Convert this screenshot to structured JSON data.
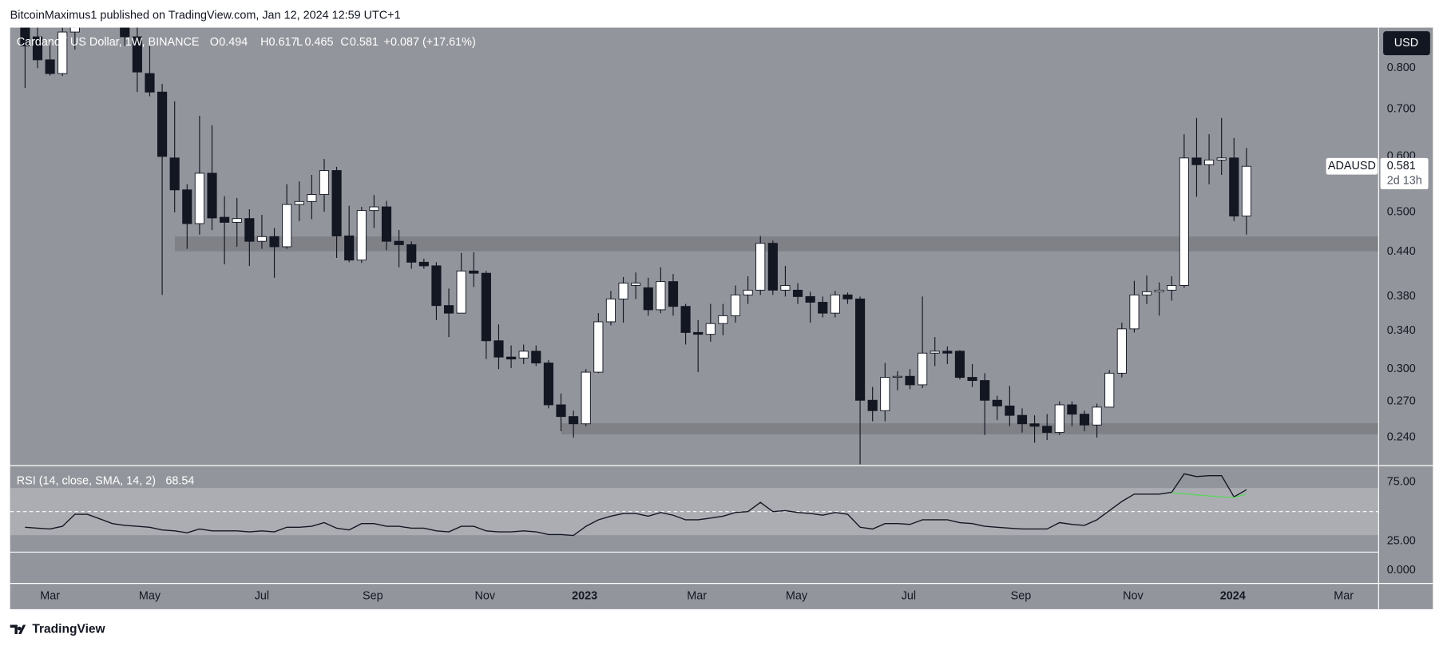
{
  "header": {
    "published": "BitcoinMaximus1 published on TradingView.com, Jan 12, 2024 12:59 UTC+1"
  },
  "footer": {
    "brand": "TradingView"
  },
  "chart_data": [
    {
      "type": "candlestick",
      "title": "Cardano / US Dollar, 1W, BINANCE",
      "ohlc_labels": [
        "O",
        "H",
        "L",
        "C"
      ],
      "change": "+0.087 (+17.61%)",
      "symbol": "ADAUSD",
      "countdown": "2d 13h",
      "currency": "USD",
      "log": true,
      "grid": false,
      "up_color": "#ffffff",
      "down_color": "#131722",
      "x": [
        0,
        1,
        2,
        3,
        4,
        5,
        6,
        7,
        8,
        9,
        10,
        11,
        12,
        13,
        14,
        15,
        16,
        17,
        18,
        19,
        20,
        21,
        22,
        23,
        24,
        25,
        26,
        27,
        28,
        29,
        30,
        31,
        32,
        33,
        34,
        35,
        36,
        37,
        38,
        39,
        40,
        41,
        42,
        43,
        44,
        45,
        46,
        47,
        48,
        49,
        50,
        51,
        52,
        53,
        54,
        55,
        56,
        57,
        58,
        59,
        60,
        61,
        62,
        63,
        64,
        65,
        66,
        67,
        68,
        69,
        70,
        71,
        72,
        73,
        74,
        75,
        76,
        77,
        78,
        79,
        80,
        81,
        82,
        83,
        84,
        85,
        86,
        87,
        88,
        89,
        90,
        91,
        92,
        93,
        94,
        95,
        96,
        97,
        98
      ],
      "open": [
        0.94,
        0.886,
        0.822,
        0.786,
        0.9,
        0.95,
        1.12,
        1.15,
        0.97,
        0.886,
        0.786,
        0.74,
        0.597,
        0.538,
        0.482,
        0.568,
        0.492,
        0.484,
        0.49,
        0.455,
        0.462,
        0.447,
        0.513,
        0.518,
        0.53,
        0.573,
        0.463,
        0.428,
        0.503,
        0.509,
        0.455,
        0.45,
        0.425,
        0.42,
        0.369,
        0.36,
        0.413,
        0.41,
        0.329,
        0.312,
        0.311,
        0.318,
        0.306,
        0.267,
        0.257,
        0.251,
        0.297,
        0.35,
        0.377,
        0.394,
        0.391,
        0.364,
        0.399,
        0.368,
        0.338,
        0.336,
        0.348,
        0.357,
        0.382,
        0.388,
        0.452,
        0.388,
        0.388,
        0.38,
        0.373,
        0.36,
        0.382,
        0.377,
        0.271,
        0.262,
        0.292,
        0.293,
        0.285,
        0.316,
        0.318,
        0.318,
        0.292,
        0.289,
        0.271,
        0.266,
        0.258,
        0.251,
        0.249,
        0.244,
        0.267,
        0.259,
        0.25,
        0.265,
        0.296,
        0.342,
        0.382,
        0.386,
        0.388,
        0.394,
        0.597,
        0.584,
        0.593,
        0.597,
        0.494
      ],
      "high": [
        0.98,
        0.93,
        0.87,
        0.92,
        1.0,
        1.15,
        1.24,
        1.16,
        1.03,
        0.93,
        0.86,
        0.76,
        0.718,
        0.548,
        0.685,
        0.664,
        0.527,
        0.524,
        0.505,
        0.496,
        0.475,
        0.548,
        0.553,
        0.565,
        0.595,
        0.58,
        0.511,
        0.509,
        0.529,
        0.519,
        0.472,
        0.455,
        0.43,
        0.425,
        0.39,
        0.438,
        0.439,
        0.413,
        0.347,
        0.324,
        0.325,
        0.324,
        0.309,
        0.277,
        0.262,
        0.3,
        0.36,
        0.387,
        0.405,
        0.411,
        0.404,
        0.418,
        0.409,
        0.371,
        0.352,
        0.371,
        0.371,
        0.394,
        0.406,
        0.463,
        0.456,
        0.42,
        0.397,
        0.386,
        0.38,
        0.387,
        0.385,
        0.38,
        0.283,
        0.306,
        0.298,
        0.3,
        0.38,
        0.333,
        0.323,
        0.319,
        0.305,
        0.296,
        0.275,
        0.284,
        0.264,
        0.258,
        0.259,
        0.27,
        0.27,
        0.262,
        0.268,
        0.299,
        0.349,
        0.4,
        0.407,
        0.398,
        0.406,
        0.645,
        0.68,
        0.645,
        0.68,
        0.637,
        0.617
      ],
      "low": [
        0.75,
        0.8,
        0.781,
        0.78,
        0.85,
        0.93,
        1.1,
        0.95,
        0.86,
        0.74,
        0.73,
        0.382,
        0.5,
        0.444,
        0.465,
        0.472,
        0.422,
        0.447,
        0.42,
        0.444,
        0.404,
        0.444,
        0.486,
        0.489,
        0.501,
        0.431,
        0.425,
        0.424,
        0.475,
        0.442,
        0.418,
        0.416,
        0.416,
        0.352,
        0.333,
        0.36,
        0.392,
        0.31,
        0.3,
        0.301,
        0.305,
        0.303,
        0.264,
        0.245,
        0.24,
        0.249,
        0.296,
        0.346,
        0.349,
        0.377,
        0.357,
        0.36,
        0.357,
        0.325,
        0.297,
        0.328,
        0.335,
        0.349,
        0.371,
        0.382,
        0.382,
        0.38,
        0.371,
        0.349,
        0.355,
        0.355,
        0.371,
        0.22,
        0.253,
        0.253,
        0.28,
        0.281,
        0.282,
        0.303,
        0.305,
        0.29,
        0.283,
        0.242,
        0.254,
        0.249,
        0.244,
        0.236,
        0.238,
        0.242,
        0.249,
        0.245,
        0.24,
        0.265,
        0.292,
        0.338,
        0.371,
        0.357,
        0.375,
        0.391,
        0.526,
        0.548,
        0.565,
        0.486,
        0.465
      ],
      "close": [
        0.86,
        0.822,
        0.786,
        0.9,
        0.95,
        1.12,
        1.15,
        0.97,
        0.886,
        0.79,
        0.74,
        0.6,
        0.538,
        0.482,
        0.568,
        0.491,
        0.484,
        0.49,
        0.455,
        0.462,
        0.447,
        0.513,
        0.518,
        0.53,
        0.573,
        0.463,
        0.428,
        0.503,
        0.509,
        0.455,
        0.45,
        0.425,
        0.42,
        0.369,
        0.36,
        0.413,
        0.41,
        0.329,
        0.312,
        0.31,
        0.318,
        0.306,
        0.267,
        0.257,
        0.251,
        0.297,
        0.35,
        0.377,
        0.397,
        0.397,
        0.364,
        0.399,
        0.368,
        0.338,
        0.336,
        0.348,
        0.357,
        0.382,
        0.388,
        0.452,
        0.388,
        0.394,
        0.38,
        0.373,
        0.36,
        0.382,
        0.377,
        0.271,
        0.262,
        0.292,
        0.293,
        0.285,
        0.316,
        0.318,
        0.316,
        0.292,
        0.289,
        0.271,
        0.266,
        0.258,
        0.251,
        0.249,
        0.244,
        0.267,
        0.259,
        0.25,
        0.265,
        0.296,
        0.342,
        0.382,
        0.386,
        0.388,
        0.394,
        0.597,
        0.584,
        0.593,
        0.597,
        0.494,
        0.581
      ],
      "xlim": [
        -1.2,
        108.6
      ],
      "xticks": [
        {
          "value": 2.0,
          "label": "Mar"
        },
        {
          "value": 10.0,
          "label": "May"
        },
        {
          "value": 19.0,
          "label": "Jul"
        },
        {
          "value": 27.9,
          "label": "Sep"
        },
        {
          "value": 36.9,
          "label": "Nov"
        },
        {
          "value": 44.9,
          "label": "2023"
        },
        {
          "value": 53.9,
          "label": "Mar"
        },
        {
          "value": 61.9,
          "label": "May"
        },
        {
          "value": 70.9,
          "label": "Jul"
        },
        {
          "value": 79.9,
          "label": "Sep"
        },
        {
          "value": 88.9,
          "label": "Nov"
        },
        {
          "value": 96.9,
          "label": "2024"
        },
        {
          "value": 105.8,
          "label": "Mar"
        }
      ],
      "ylim": [
        0.219,
        0.913
      ],
      "yticks": [
        {
          "value": 0.8,
          "label": "0.800"
        },
        {
          "value": 0.7,
          "label": "0.700"
        },
        {
          "value": 0.6,
          "label": "0.600"
        },
        {
          "value": 0.5,
          "label": "0.500"
        },
        {
          "value": 0.44,
          "label": "0.440"
        },
        {
          "value": 0.38,
          "label": "0.380"
        },
        {
          "value": 0.34,
          "label": "0.340"
        },
        {
          "value": 0.3,
          "label": "0.300"
        },
        {
          "value": 0.27,
          "label": "0.270"
        },
        {
          "value": 0.24,
          "label": "0.240"
        }
      ]
    },
    {
      "type": "line",
      "title": "RSI (14, close, SMA, 14, 2)",
      "band": [
        30,
        70
      ],
      "midline": 50,
      "series": [
        {
          "color": "#131722",
          "values": [
            36.7,
            35.9,
            35.2,
            37.5,
            47.7,
            47.7,
            43.8,
            39.8,
            38.3,
            37.5,
            36.7,
            34.4,
            33.6,
            32.0,
            35.2,
            33.6,
            33.6,
            33.6,
            32.8,
            33.6,
            32.8,
            36.7,
            36.7,
            37.5,
            40.6,
            35.9,
            34.4,
            39.8,
            39.8,
            37.5,
            37.5,
            35.9,
            35.9,
            33.6,
            32.8,
            37.5,
            37.5,
            33.6,
            32.8,
            32.8,
            33.6,
            32.8,
            30.5,
            30.5,
            29.7,
            37.5,
            43.0,
            46.1,
            48.4,
            48.4,
            46.1,
            49.2,
            46.9,
            43.0,
            43.0,
            44.5,
            46.1,
            49.2,
            50.0,
            57.8,
            50.0,
            50.8,
            49.2,
            48.4,
            46.9,
            49.2,
            47.7,
            36.7,
            35.2,
            39.8,
            39.8,
            39.1,
            43.0,
            43.0,
            43.0,
            40.6,
            39.8,
            37.5,
            36.7,
            35.9,
            35.2,
            35.2,
            35.2,
            40.6,
            39.1,
            38.3,
            43.0,
            50.8,
            58.6,
            64.8,
            64.8,
            64.8,
            66.4,
            82.0,
            79.7,
            80.5,
            80.5,
            62.5,
            68.54
          ]
        },
        {
          "color": "#5fd35f",
          "values": [
            null,
            null,
            null,
            null,
            null,
            null,
            null,
            null,
            null,
            null,
            null,
            null,
            null,
            null,
            null,
            null,
            null,
            null,
            null,
            null,
            null,
            null,
            null,
            null,
            null,
            null,
            null,
            null,
            null,
            null,
            null,
            null,
            null,
            null,
            null,
            null,
            null,
            null,
            null,
            null,
            null,
            null,
            null,
            null,
            null,
            null,
            null,
            null,
            null,
            null,
            null,
            null,
            null,
            null,
            null,
            null,
            null,
            null,
            null,
            null,
            null,
            null,
            null,
            null,
            null,
            null,
            null,
            null,
            null,
            null,
            null,
            null,
            null,
            null,
            null,
            null,
            null,
            null,
            null,
            null,
            null,
            null,
            null,
            null,
            null,
            null,
            null,
            null,
            null,
            null,
            null,
            null,
            66.0,
            65.2,
            64.1,
            63.3,
            62.5,
            61.9,
            64.8
          ]
        }
      ],
      "ylim": [
        -11,
        89
      ],
      "yticks": [
        {
          "value": 75,
          "label": "75.00"
        },
        {
          "value": 25,
          "label": "25.00"
        },
        {
          "value": 0,
          "label": "0.000"
        }
      ]
    }
  ]
}
